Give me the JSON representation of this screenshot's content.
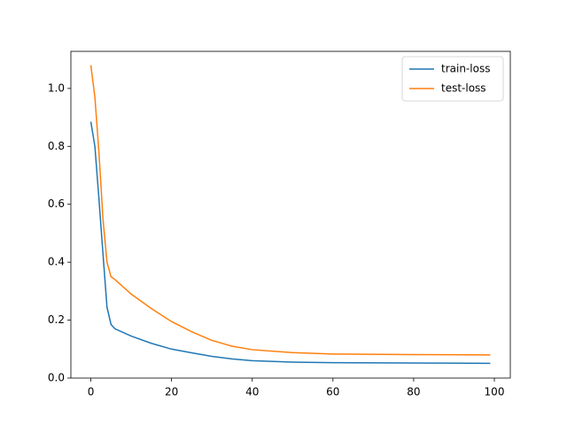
{
  "chart_data": {
    "type": "line",
    "x": [
      0,
      1,
      2,
      3,
      4,
      5,
      6,
      10,
      15,
      20,
      25,
      30,
      35,
      40,
      50,
      60,
      80,
      99
    ],
    "series": [
      {
        "name": "train-loss",
        "color": "#1f77b4",
        "values": [
          0.885,
          0.8,
          0.62,
          0.43,
          0.245,
          0.185,
          0.17,
          0.145,
          0.12,
          0.1,
          0.087,
          0.075,
          0.066,
          0.06,
          0.055,
          0.053,
          0.052,
          0.051
        ]
      },
      {
        "name": "test-loss",
        "color": "#ff7f0e",
        "values": [
          1.08,
          0.97,
          0.78,
          0.55,
          0.4,
          0.35,
          0.34,
          0.29,
          0.24,
          0.195,
          0.16,
          0.13,
          0.11,
          0.098,
          0.088,
          0.083,
          0.081,
          0.08
        ]
      }
    ],
    "xlim": [
      -4.95,
      103.95
    ],
    "xticks": [
      0,
      20,
      40,
      60,
      80,
      100
    ],
    "ylim": [
      0,
      1.128
    ],
    "yticks": [
      {
        "value": 0.0,
        "label": "0.0"
      },
      {
        "value": 0.2,
        "label": "0.2"
      },
      {
        "value": 0.4,
        "label": "0.4"
      },
      {
        "value": 0.6,
        "label": "0.6"
      },
      {
        "value": 0.8,
        "label": "0.8"
      },
      {
        "value": 1.0,
        "label": "1.0"
      }
    ],
    "legend": "upper right",
    "grid": false
  }
}
